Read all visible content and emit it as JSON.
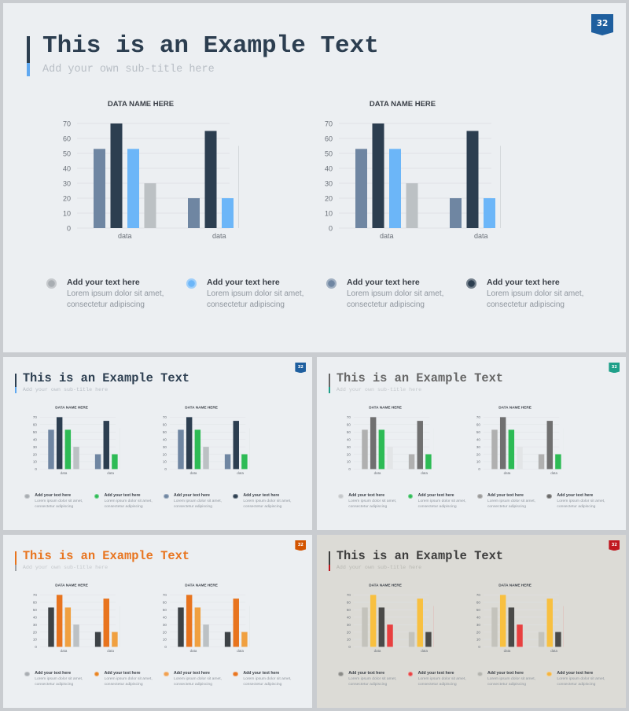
{
  "slides": [
    {
      "id": "main",
      "title": "This is an Example Text",
      "subtitle": "Add your own sub-title here",
      "page_number": "32",
      "colors": {
        "background": "#eceff2",
        "title": "#2c3e50",
        "subtitle": "#b8bec5",
        "badge": "#1f5f9f",
        "bar_top": "#2c3e50",
        "bar_bottom": "#5fa8f0"
      },
      "legend_title": "Add your text here",
      "legend_desc_line1": "Lorem ipsum dolor sit amet,",
      "legend_desc_line2": "consectetur adipiscing",
      "legend_colors": [
        "#a8adb2",
        "#6cb6f8",
        "#6f86a2",
        "#2c3e50"
      ],
      "bar_colors": [
        "#6f86a2",
        "#2c3e50",
        "#6cb6f8",
        "#bcc1c4"
      ]
    },
    {
      "id": "blue-green",
      "title": "This is an Example Text",
      "subtitle": "Add your own sub-title here",
      "page_number": "32",
      "colors": {
        "background": "#eceff2",
        "title": "#2c3e50",
        "subtitle": "#b8bec5",
        "badge": "#1f5f9f",
        "bar_top": "#2c3e50",
        "bar_bottom": "#5fa8f0"
      },
      "legend_title": "Add your text here",
      "legend_desc_line1": "Lorem ipsum dolor sit amet,",
      "legend_desc_line2": "consectetur adipiscing",
      "legend_colors": [
        "#a8adb2",
        "#2dbb55",
        "#6f86a2",
        "#2c3e50"
      ],
      "bar_colors": [
        "#6f86a2",
        "#2c3e50",
        "#2dbb55",
        "#bcc1c4"
      ]
    },
    {
      "id": "gray-green",
      "title": "This is an Example Text",
      "subtitle": "Add your own sub-title here",
      "page_number": "32",
      "colors": {
        "background": "#eceff2",
        "title": "#666666",
        "subtitle": "#c4c8cc",
        "badge": "#1fa08a",
        "bar_top": "#666666",
        "bar_bottom": "#1fa08a"
      },
      "legend_title": "Add your text here",
      "legend_desc_line1": "Lorem ipsum dolor sit amet,",
      "legend_desc_line2": "consectetur adipiscing",
      "legend_colors": [
        "#c4c7ca",
        "#2dbb55",
        "#9a9a9a",
        "#6a6a6a"
      ],
      "bar_colors": [
        "#b0b0b0",
        "#707070",
        "#2dbb55",
        "#e3e5e7"
      ]
    },
    {
      "id": "orange",
      "title": "This is an Example Text",
      "subtitle": "Add your own sub-title here",
      "page_number": "32",
      "colors": {
        "background": "#eceff2",
        "title": "#e8741e",
        "subtitle": "#c4c8cc",
        "badge": "#d35400",
        "bar_top": "#e8741e",
        "bar_bottom": "#a0a4a8"
      },
      "legend_title": "Add your text here",
      "legend_desc_line1": "Lorem ipsum dolor sit amet,",
      "legend_desc_line2": "consectetur adipiscing",
      "legend_colors": [
        "#a8adb2",
        "#e8821e",
        "#f0a050",
        "#e8741e"
      ],
      "bar_colors": [
        "#3d4246",
        "#e8741e",
        "#f0a040",
        "#bcc1c4"
      ]
    },
    {
      "id": "warm",
      "title": "This is an Example Text",
      "subtitle": "Add your own sub-title here",
      "page_number": "32",
      "colors": {
        "background": "#dcdbd6",
        "title": "#3d3d3d",
        "subtitle": "#b8b8b2",
        "badge": "#c0171f",
        "bar_top": "#3d3d3d",
        "bar_bottom": "#c0171f"
      },
      "legend_title": "Add your text here",
      "legend_desc_line1": "Lorem ipsum dolor sit amet,",
      "legend_desc_line2": "consectetur adipiscing",
      "legend_colors": [
        "#8a8a86",
        "#e84040",
        "#b4b4ae",
        "#f4b440"
      ],
      "bar_colors": [
        "#c4c3bc",
        "#f8c040",
        "#4a4a48",
        "#e84040"
      ]
    }
  ],
  "chart_data": [
    {
      "type": "bar",
      "title": "DATA NAME HERE",
      "categories": [
        "data",
        "data"
      ],
      "series": [
        {
          "values": [
            53,
            20
          ]
        },
        {
          "values": [
            70,
            65
          ]
        },
        {
          "values": [
            53,
            20
          ]
        },
        {
          "values": [
            30,
            55
          ]
        }
      ],
      "ylim": [
        0,
        70
      ],
      "yticks": [
        0,
        10,
        20,
        30,
        40,
        50,
        60,
        70
      ],
      "grid": true
    }
  ]
}
